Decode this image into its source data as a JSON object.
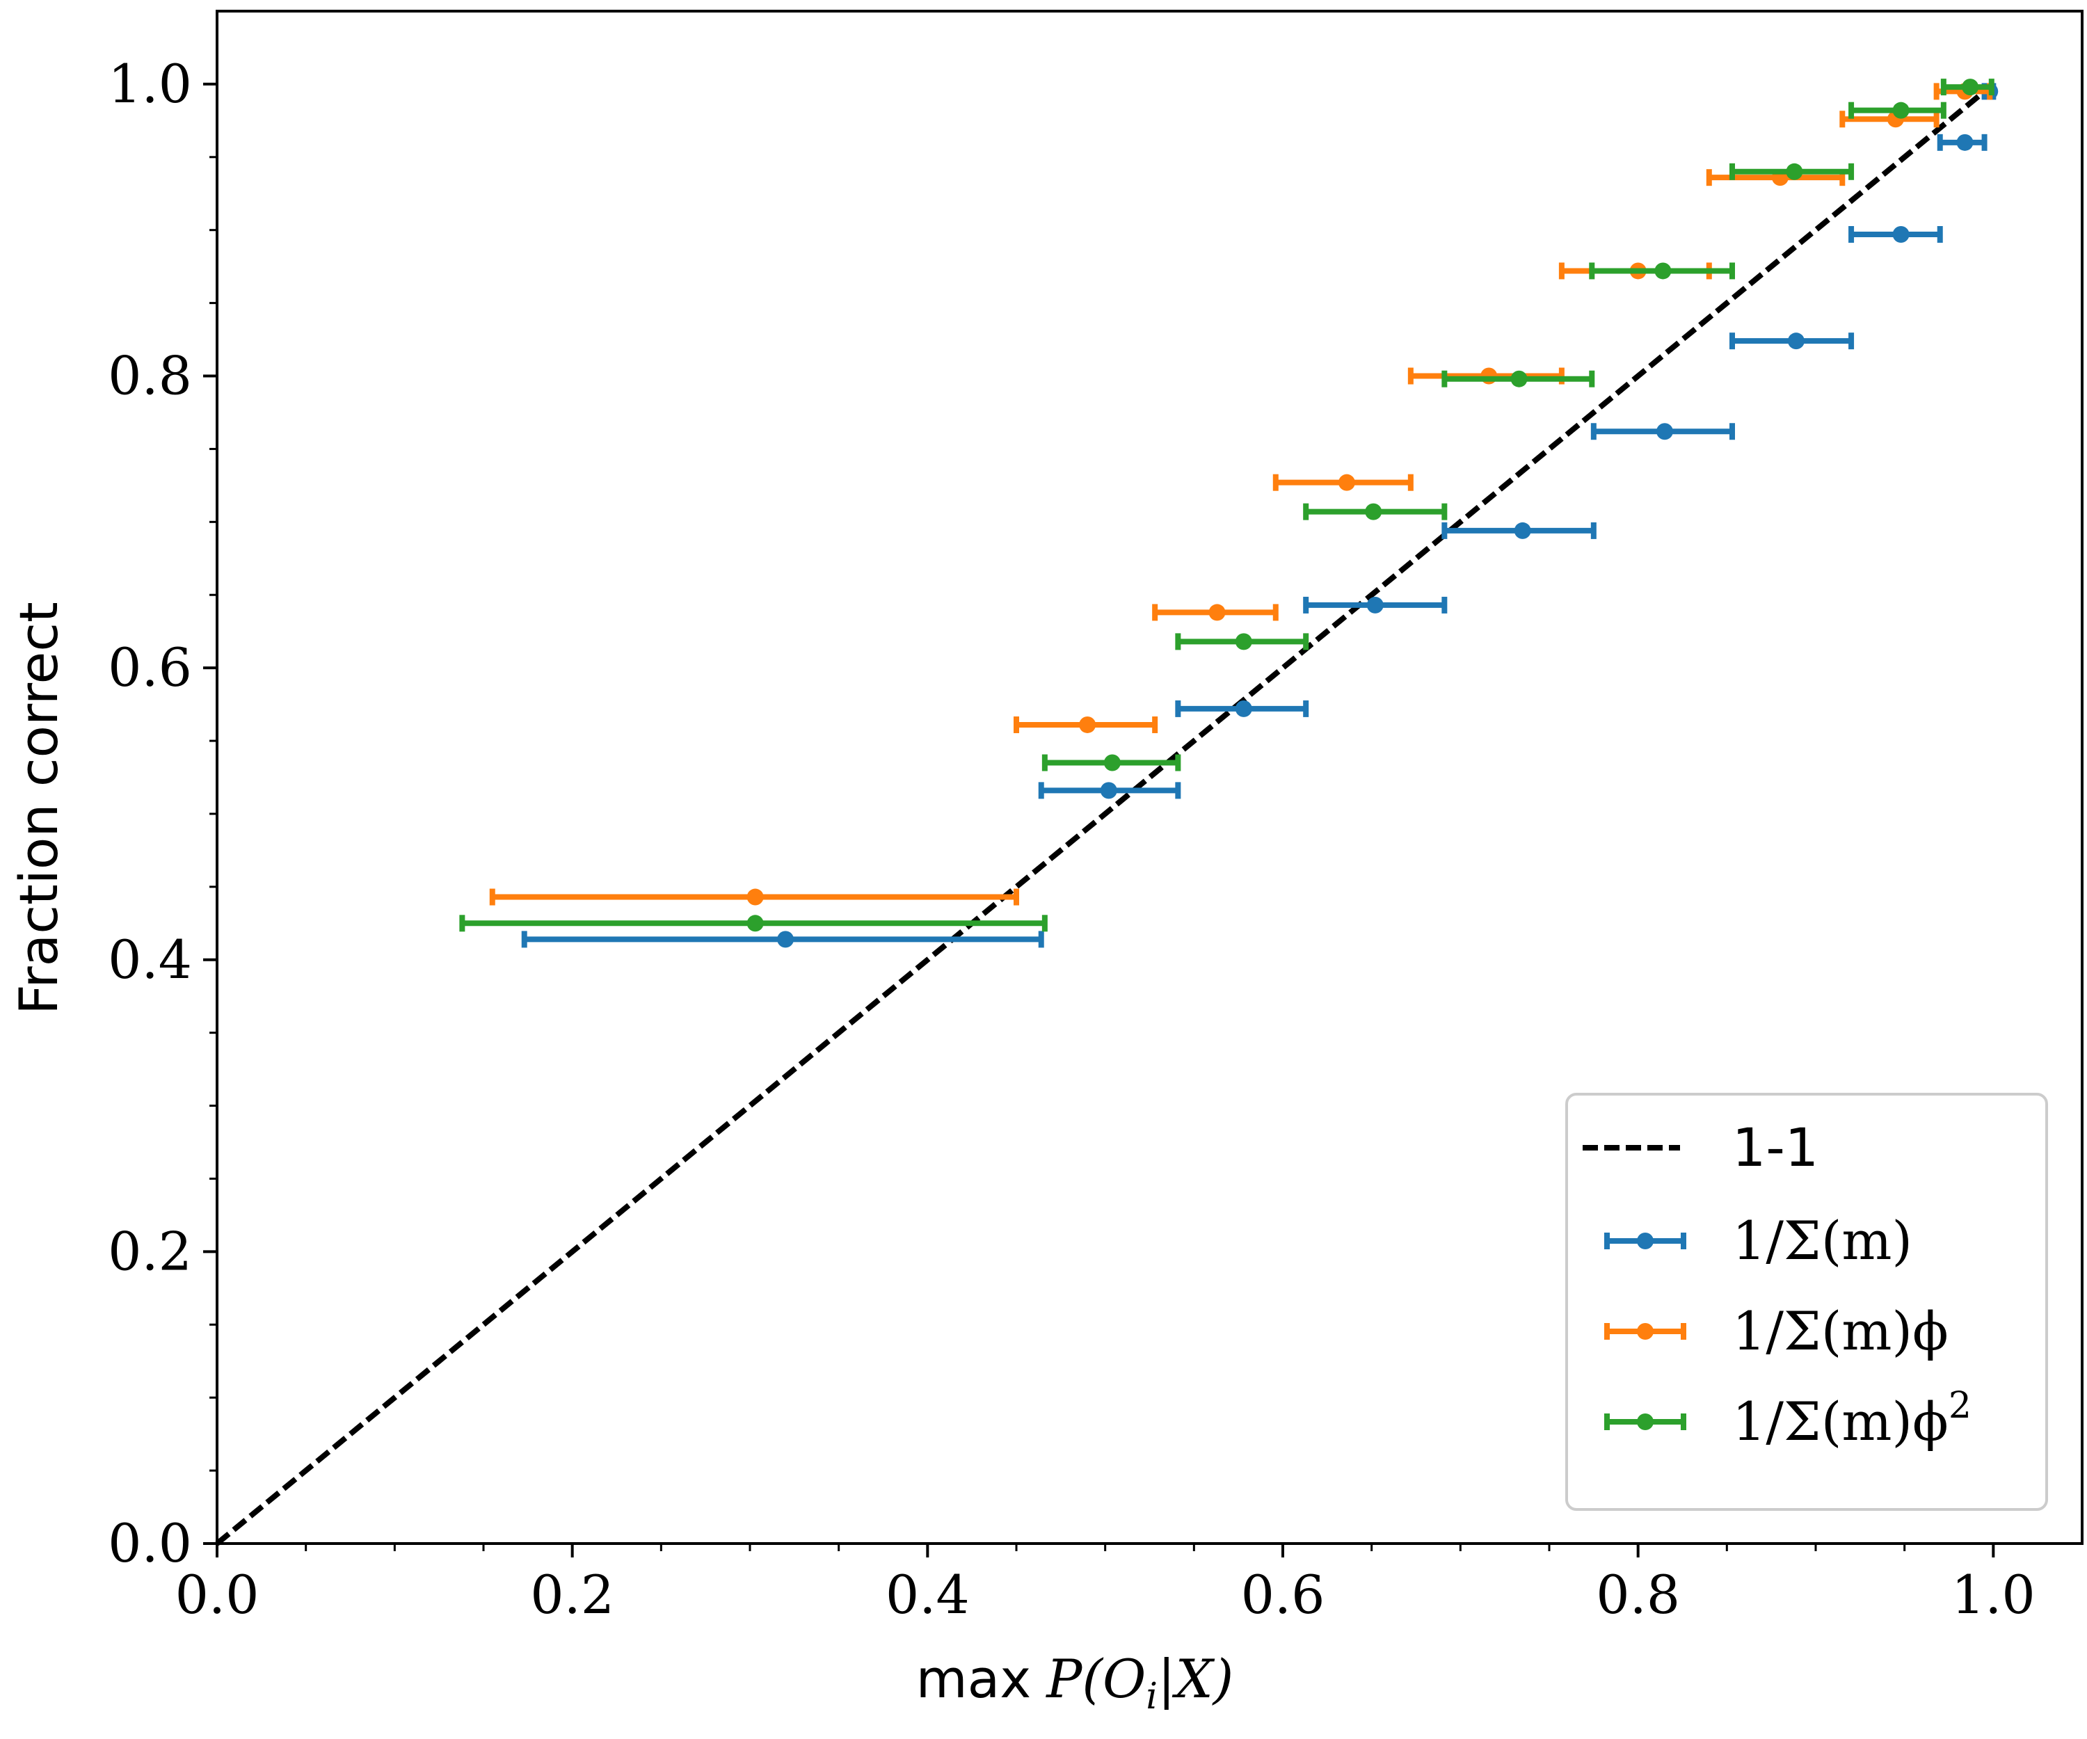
{
  "chart_data": {
    "type": "scatter",
    "xlabel_prefix": "max",
    "xlabel_math": "P(O",
    "xlabel_sub": "i",
    "xlabel_math_end": "|X)",
    "ylabel": "Fraction correct",
    "xlim": [
      0.0,
      1.05
    ],
    "ylim": [
      0.0,
      1.05
    ],
    "xticks": [
      "0.0",
      "0.2",
      "0.4",
      "0.6",
      "0.8",
      "1.0"
    ],
    "yticks": [
      "0.0",
      "0.2",
      "0.4",
      "0.6",
      "0.8",
      "1.0"
    ],
    "grid": false,
    "legend_position": "bottom-right",
    "reference_line": {
      "name": "1-1",
      "color": "#000000",
      "style": "dashed",
      "points": [
        [
          0,
          0
        ],
        [
          1,
          1
        ]
      ]
    },
    "series": [
      {
        "name": "1/Σ(m)",
        "color": "#1f77b4",
        "points": [
          {
            "x": 0.32,
            "y": 0.414,
            "xmin": 0.173,
            "xmax": 0.464
          },
          {
            "x": 0.502,
            "y": 0.516,
            "xmin": 0.464,
            "xmax": 0.541
          },
          {
            "x": 0.578,
            "y": 0.572,
            "xmin": 0.541,
            "xmax": 0.613
          },
          {
            "x": 0.652,
            "y": 0.643,
            "xmin": 0.613,
            "xmax": 0.691
          },
          {
            "x": 0.735,
            "y": 0.694,
            "xmin": 0.691,
            "xmax": 0.775
          },
          {
            "x": 0.815,
            "y": 0.762,
            "xmin": 0.775,
            "xmax": 0.853
          },
          {
            "x": 0.889,
            "y": 0.824,
            "xmin": 0.853,
            "xmax": 0.92
          },
          {
            "x": 0.948,
            "y": 0.897,
            "xmin": 0.92,
            "xmax": 0.97
          },
          {
            "x": 0.984,
            "y": 0.96,
            "xmin": 0.97,
            "xmax": 0.995
          },
          {
            "x": 0.998,
            "y": 0.995,
            "xmin": 0.995,
            "xmax": 1.0
          }
        ]
      },
      {
        "name": "1/Σ(m)ϕ",
        "color": "#ff7f0e",
        "points": [
          {
            "x": 0.303,
            "y": 0.443,
            "xmin": 0.155,
            "xmax": 0.45
          },
          {
            "x": 0.49,
            "y": 0.561,
            "xmin": 0.45,
            "xmax": 0.528
          },
          {
            "x": 0.563,
            "y": 0.638,
            "xmin": 0.528,
            "xmax": 0.596
          },
          {
            "x": 0.636,
            "y": 0.727,
            "xmin": 0.596,
            "xmax": 0.672
          },
          {
            "x": 0.716,
            "y": 0.8,
            "xmin": 0.672,
            "xmax": 0.757
          },
          {
            "x": 0.8,
            "y": 0.872,
            "xmin": 0.757,
            "xmax": 0.84
          },
          {
            "x": 0.88,
            "y": 0.936,
            "xmin": 0.84,
            "xmax": 0.915
          },
          {
            "x": 0.945,
            "y": 0.976,
            "xmin": 0.915,
            "xmax": 0.968
          },
          {
            "x": 0.984,
            "y": 0.995,
            "xmin": 0.968,
            "xmax": 0.998
          }
        ]
      },
      {
        "name": "1/Σ(m)ϕ",
        "name_sup": "2",
        "color": "#2ca02c",
        "points": [
          {
            "x": 0.303,
            "y": 0.425,
            "xmin": 0.138,
            "xmax": 0.466
          },
          {
            "x": 0.504,
            "y": 0.535,
            "xmin": 0.466,
            "xmax": 0.541
          },
          {
            "x": 0.578,
            "y": 0.618,
            "xmin": 0.541,
            "xmax": 0.613
          },
          {
            "x": 0.651,
            "y": 0.707,
            "xmin": 0.613,
            "xmax": 0.691
          },
          {
            "x": 0.733,
            "y": 0.798,
            "xmin": 0.691,
            "xmax": 0.774
          },
          {
            "x": 0.814,
            "y": 0.872,
            "xmin": 0.774,
            "xmax": 0.853
          },
          {
            "x": 0.888,
            "y": 0.94,
            "xmin": 0.853,
            "xmax": 0.92
          },
          {
            "x": 0.948,
            "y": 0.982,
            "xmin": 0.92,
            "xmax": 0.972
          },
          {
            "x": 0.987,
            "y": 0.998,
            "xmin": 0.972,
            "xmax": 0.999
          }
        ]
      }
    ]
  }
}
